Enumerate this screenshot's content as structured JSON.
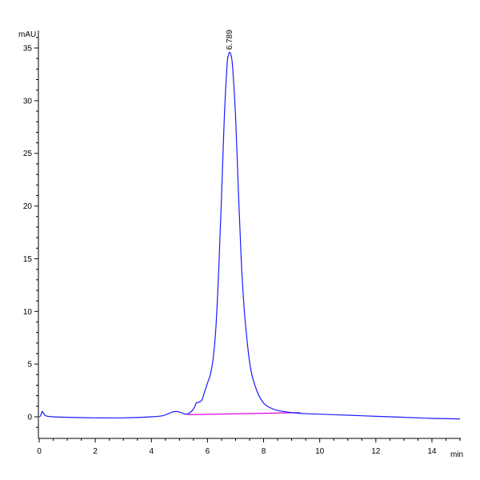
{
  "chart_data": {
    "type": "line",
    "title": "",
    "xlabel": "min",
    "ylabel": "mAU",
    "xlim": [
      0,
      15
    ],
    "ylim": [
      -2,
      36.5
    ],
    "x_ticks": [
      0,
      2,
      4,
      6,
      8,
      10,
      12,
      14
    ],
    "y_ticks": [
      0,
      5,
      10,
      15,
      20,
      25,
      30,
      35
    ],
    "grid": false,
    "peak_label": {
      "text": "6.789",
      "x": 6.789,
      "y": 34.6
    },
    "baseline": {
      "x": [
        5.3,
        9.3
      ],
      "y": [
        0.2,
        0.4
      ],
      "color": "#e000e0"
    },
    "series": [
      {
        "color": "#1a1aff",
        "x": [
          0.0,
          0.05,
          0.1,
          0.15,
          0.2,
          0.3,
          0.5,
          1.0,
          2.0,
          3.0,
          4.0,
          4.4,
          4.6,
          4.75,
          4.9,
          5.05,
          5.2,
          5.35,
          5.5,
          5.6,
          5.65,
          5.7,
          5.8,
          5.9,
          6.0,
          6.1,
          6.2,
          6.3,
          6.4,
          6.5,
          6.6,
          6.7,
          6.75,
          6.789,
          6.85,
          6.9,
          7.0,
          7.1,
          7.2,
          7.3,
          7.4,
          7.5,
          7.6,
          7.8,
          8.0,
          8.2,
          8.5,
          9.0,
          9.5,
          10.0,
          11.0,
          12.0,
          13.0,
          14.0,
          15.0
        ],
        "y": [
          0.0,
          0.1,
          0.5,
          0.35,
          0.15,
          0.05,
          0.0,
          -0.05,
          -0.1,
          -0.1,
          0.0,
          0.1,
          0.3,
          0.45,
          0.5,
          0.4,
          0.25,
          0.35,
          0.75,
          1.3,
          1.35,
          1.4,
          1.6,
          2.4,
          3.2,
          4.0,
          5.5,
          8.5,
          14.0,
          21.0,
          28.5,
          33.5,
          34.3,
          34.6,
          34.2,
          33.0,
          28.5,
          21.5,
          15.0,
          10.5,
          7.5,
          5.2,
          3.8,
          2.2,
          1.3,
          0.9,
          0.6,
          0.4,
          0.3,
          0.25,
          0.15,
          0.05,
          -0.05,
          -0.15,
          -0.2
        ]
      }
    ]
  }
}
